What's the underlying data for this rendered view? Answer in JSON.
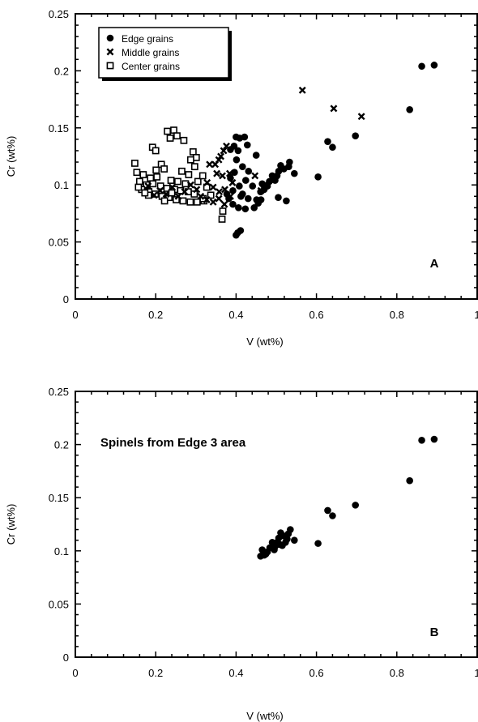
{
  "chart_data": [
    {
      "type": "scatter",
      "panel": "A",
      "xlabel": "V  (wt%)",
      "ylabel": "Cr (wt%)",
      "xlim": [
        0,
        1
      ],
      "ylim": [
        0,
        0.25
      ],
      "x_ticks": [
        "0",
        "0.2",
        "0.4",
        "0.6",
        "0.8",
        "1"
      ],
      "y_ticks": [
        "0",
        "0.05",
        "0.1",
        "0.15",
        "0.2",
        "0.25"
      ],
      "grid": false,
      "legend": {
        "placement": "top-left",
        "entries": [
          "Edge grains",
          "Middle grains",
          "Center grains"
        ]
      },
      "series": [
        {
          "name": "Edge grains",
          "marker": "circle",
          "points": [
            [
              0.862,
              0.204
            ],
            [
              0.893,
              0.205
            ],
            [
              0.832,
              0.166
            ],
            [
              0.697,
              0.143
            ],
            [
              0.628,
              0.138
            ],
            [
              0.64,
              0.133
            ],
            [
              0.604,
              0.107
            ],
            [
              0.533,
              0.12
            ],
            [
              0.531,
              0.116
            ],
            [
              0.519,
              0.114
            ],
            [
              0.511,
              0.117
            ],
            [
              0.506,
              0.112
            ],
            [
              0.502,
              0.108
            ],
            [
              0.497,
              0.104
            ],
            [
              0.49,
              0.108
            ],
            [
              0.483,
              0.103
            ],
            [
              0.478,
              0.099
            ],
            [
              0.47,
              0.096
            ],
            [
              0.465,
              0.101
            ],
            [
              0.461,
              0.094
            ],
            [
              0.545,
              0.11
            ],
            [
              0.525,
              0.086
            ],
            [
              0.505,
              0.089
            ],
            [
              0.4,
              0.142
            ],
            [
              0.409,
              0.141
            ],
            [
              0.421,
              0.142
            ],
            [
              0.428,
              0.135
            ],
            [
              0.405,
              0.13
            ],
            [
              0.395,
              0.134
            ],
            [
              0.386,
              0.131
            ],
            [
              0.45,
              0.126
            ],
            [
              0.401,
              0.122
            ],
            [
              0.416,
              0.116
            ],
            [
              0.431,
              0.112
            ],
            [
              0.396,
              0.111
            ],
            [
              0.386,
              0.106
            ],
            [
              0.424,
              0.104
            ],
            [
              0.441,
              0.099
            ],
            [
              0.408,
              0.099
            ],
            [
              0.392,
              0.095
            ],
            [
              0.377,
              0.092
            ],
            [
              0.412,
              0.09
            ],
            [
              0.43,
              0.088
            ],
            [
              0.451,
              0.087
            ],
            [
              0.392,
              0.083
            ],
            [
              0.406,
              0.08
            ],
            [
              0.423,
              0.079
            ],
            [
              0.445,
              0.08
            ],
            [
              0.416,
              0.092
            ],
            [
              0.382,
              0.088
            ],
            [
              0.404,
              0.058
            ],
            [
              0.411,
              0.06
            ],
            [
              0.4,
              0.056
            ],
            [
              0.455,
              0.084
            ],
            [
              0.462,
              0.087
            ]
          ]
        },
        {
          "name": "Middle grains",
          "marker": "x",
          "points": [
            [
              0.565,
              0.183
            ],
            [
              0.643,
              0.167
            ],
            [
              0.712,
              0.16
            ],
            [
              0.376,
              0.134
            ],
            [
              0.369,
              0.13
            ],
            [
              0.362,
              0.125
            ],
            [
              0.357,
              0.122
            ],
            [
              0.348,
              0.118
            ],
            [
              0.334,
              0.118
            ],
            [
              0.352,
              0.11
            ],
            [
              0.366,
              0.108
            ],
            [
              0.447,
              0.108
            ],
            [
              0.462,
              0.095
            ],
            [
              0.47,
              0.1
            ],
            [
              0.328,
              0.102
            ],
            [
              0.343,
              0.098
            ],
            [
              0.358,
              0.094
            ],
            [
              0.372,
              0.096
            ],
            [
              0.386,
              0.09
            ],
            [
              0.302,
              0.096
            ],
            [
              0.287,
              0.1
            ],
            [
              0.272,
              0.094
            ],
            [
              0.256,
              0.09
            ],
            [
              0.312,
              0.09
            ],
            [
              0.327,
              0.087
            ],
            [
              0.343,
              0.085
            ],
            [
              0.357,
              0.088
            ],
            [
              0.371,
              0.083
            ],
            [
              0.241,
              0.098
            ],
            [
              0.226,
              0.092
            ],
            [
              0.211,
              0.095
            ],
            [
              0.196,
              0.091
            ],
            [
              0.181,
              0.099
            ],
            [
              0.384,
              0.11
            ],
            [
              0.391,
              0.102
            ]
          ]
        },
        {
          "name": "Center grains",
          "marker": "square",
          "points": [
            [
              0.229,
              0.147
            ],
            [
              0.245,
              0.148
            ],
            [
              0.236,
              0.141
            ],
            [
              0.253,
              0.143
            ],
            [
              0.27,
              0.139
            ],
            [
              0.192,
              0.133
            ],
            [
              0.2,
              0.13
            ],
            [
              0.293,
              0.129
            ],
            [
              0.301,
              0.124
            ],
            [
              0.287,
              0.122
            ],
            [
              0.148,
              0.119
            ],
            [
              0.214,
              0.118
            ],
            [
              0.201,
              0.113
            ],
            [
              0.221,
              0.114
            ],
            [
              0.265,
              0.112
            ],
            [
              0.297,
              0.116
            ],
            [
              0.282,
              0.109
            ],
            [
              0.153,
              0.111
            ],
            [
              0.169,
              0.109
            ],
            [
              0.187,
              0.106
            ],
            [
              0.203,
              0.107
            ],
            [
              0.238,
              0.104
            ],
            [
              0.255,
              0.103
            ],
            [
              0.274,
              0.101
            ],
            [
              0.16,
              0.103
            ],
            [
              0.177,
              0.1
            ],
            [
              0.193,
              0.101
            ],
            [
              0.212,
              0.099
            ],
            [
              0.228,
              0.097
            ],
            [
              0.247,
              0.096
            ],
            [
              0.262,
              0.095
            ],
            [
              0.281,
              0.094
            ],
            [
              0.296,
              0.092
            ],
            [
              0.165,
              0.096
            ],
            [
              0.183,
              0.094
            ],
            [
              0.199,
              0.092
            ],
            [
              0.216,
              0.09
            ],
            [
              0.233,
              0.089
            ],
            [
              0.251,
              0.087
            ],
            [
              0.268,
              0.086
            ],
            [
              0.286,
              0.085
            ],
            [
              0.303,
              0.085
            ],
            [
              0.32,
              0.086
            ],
            [
              0.182,
              0.091
            ],
            [
              0.367,
              0.077
            ],
            [
              0.365,
              0.07
            ],
            [
              0.318,
              0.088
            ],
            [
              0.337,
              0.091
            ],
            [
              0.305,
              0.103
            ],
            [
              0.317,
              0.108
            ],
            [
              0.327,
              0.098
            ],
            [
              0.222,
              0.086
            ],
            [
              0.24,
              0.093
            ],
            [
              0.157,
              0.098
            ],
            [
              0.173,
              0.093
            ]
          ]
        }
      ]
    },
    {
      "type": "scatter",
      "panel": "B",
      "title": "Spinels from Edge 3 area",
      "xlabel": "V (wt%)",
      "ylabel": "Cr (wt%)",
      "xlim": [
        0,
        1
      ],
      "ylim": [
        0,
        0.25
      ],
      "x_ticks": [
        "0",
        "0.2",
        "0.4",
        "0.6",
        "0.8",
        "1"
      ],
      "y_ticks": [
        "0",
        "0.05",
        "0.1",
        "0.15",
        "0.2",
        "0.25"
      ],
      "grid": false,
      "series": [
        {
          "marker": "circle",
          "points": [
            [
              0.862,
              0.204
            ],
            [
              0.893,
              0.205
            ],
            [
              0.832,
              0.166
            ],
            [
              0.697,
              0.143
            ],
            [
              0.628,
              0.138
            ],
            [
              0.64,
              0.133
            ],
            [
              0.604,
              0.107
            ],
            [
              0.535,
              0.12
            ],
            [
              0.53,
              0.116
            ],
            [
              0.519,
              0.114
            ],
            [
              0.511,
              0.117
            ],
            [
              0.506,
              0.112
            ],
            [
              0.502,
              0.108
            ],
            [
              0.497,
              0.104
            ],
            [
              0.49,
              0.108
            ],
            [
              0.484,
              0.103
            ],
            [
              0.478,
              0.099
            ],
            [
              0.47,
              0.096
            ],
            [
              0.465,
              0.101
            ],
            [
              0.461,
              0.095
            ],
            [
              0.545,
              0.11
            ],
            [
              0.523,
              0.108
            ],
            [
              0.515,
              0.105
            ],
            [
              0.527,
              0.111
            ],
            [
              0.509,
              0.106
            ],
            [
              0.495,
              0.101
            ],
            [
              0.474,
              0.097
            ]
          ]
        }
      ]
    }
  ]
}
